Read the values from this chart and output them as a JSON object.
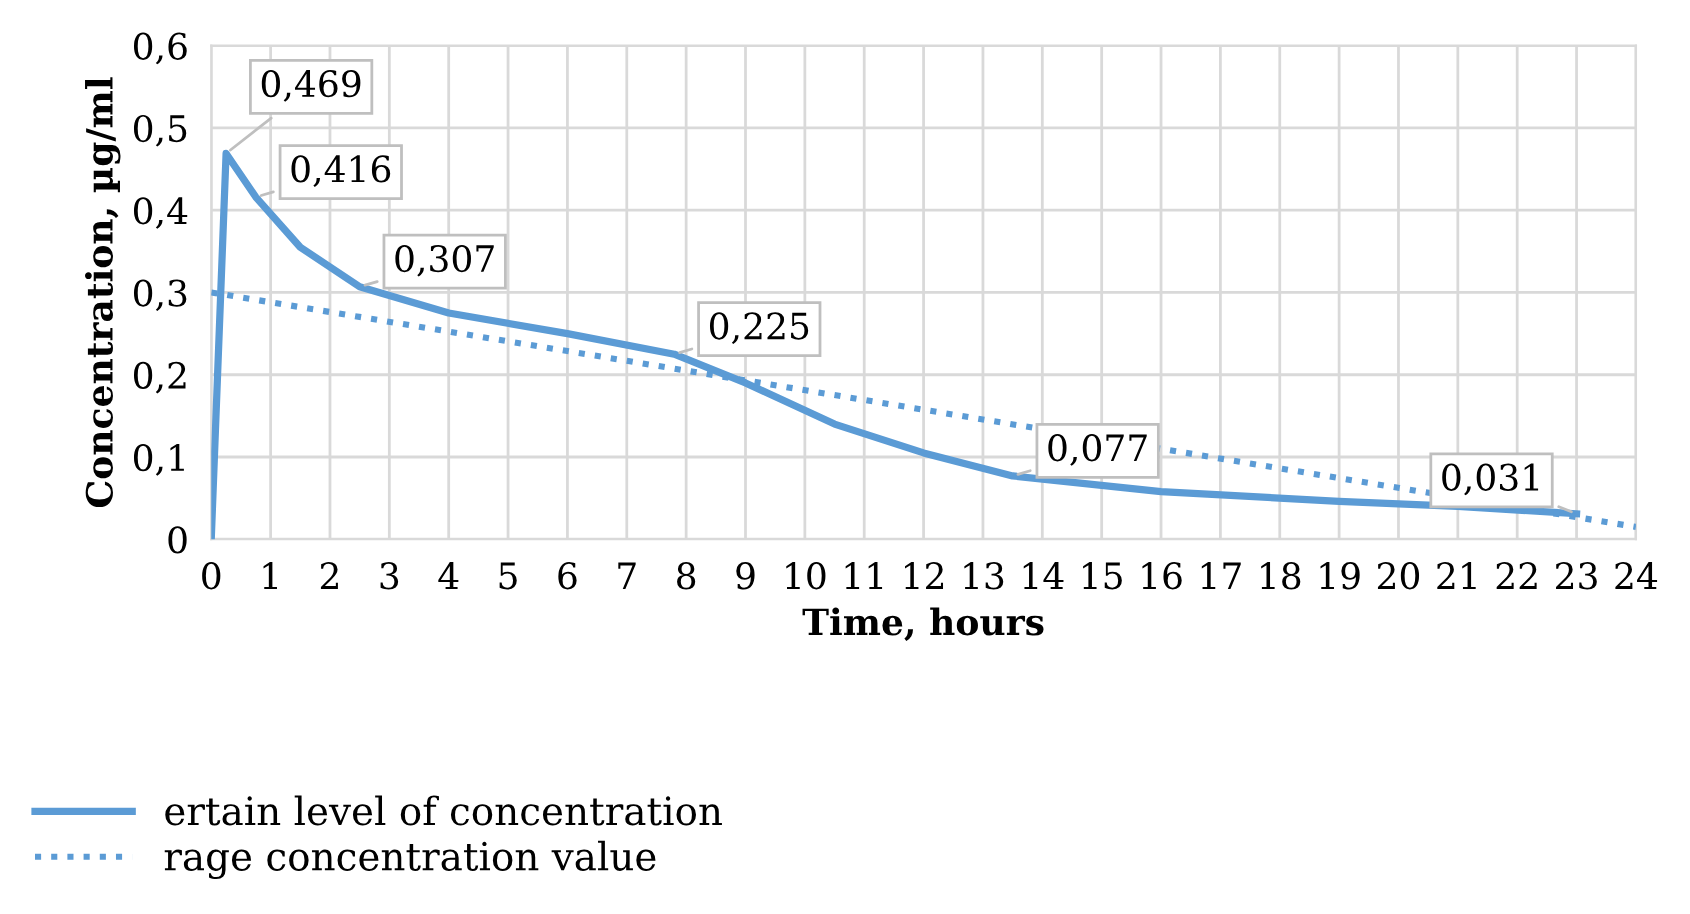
{
  "chart_data": {
    "type": "line",
    "xlabel": "Time, hours",
    "ylabel": "Concentration, µg/ml",
    "xlim": [
      0,
      24
    ],
    "xticks": [
      0,
      1,
      2,
      3,
      4,
      5,
      6,
      7,
      8,
      9,
      10,
      11,
      12,
      13,
      14,
      15,
      16,
      17,
      18,
      19,
      20,
      21,
      22,
      23,
      24
    ],
    "ylim": [
      0,
      0.6
    ],
    "yticks": [
      {
        "value": 0,
        "label": "0"
      },
      {
        "value": 0.1,
        "label": "0,1"
      },
      {
        "value": 0.2,
        "label": "0,2"
      },
      {
        "value": 0.3,
        "label": "0,3"
      },
      {
        "value": 0.4,
        "label": "0,4"
      },
      {
        "value": 0.5,
        "label": "0,5"
      },
      {
        "value": 0.6,
        "label": "0,6"
      }
    ],
    "grid": true,
    "legend": "bottom left",
    "marker": "none",
    "series": [
      {
        "name": "ertain level of concentration",
        "color": "#5b9bd5",
        "line_style": "solid",
        "x": [
          0,
          0.25,
          0.75,
          1.5,
          2.5,
          4,
          6,
          7.8,
          9,
          10.5,
          12,
          13.5,
          16,
          19,
          21,
          23
        ],
        "values": [
          0,
          0.469,
          0.416,
          0.355,
          0.307,
          0.275,
          0.25,
          0.225,
          0.19,
          0.14,
          0.105,
          0.077,
          0.058,
          0.046,
          0.04,
          0.031
        ],
        "value_labels": [
          null,
          "0,469",
          "0,416",
          null,
          "0,307",
          null,
          null,
          "0,225",
          null,
          null,
          null,
          "0,077",
          null,
          null,
          null,
          "0,031"
        ]
      },
      {
        "name": "rage concentration value",
        "color": "#5b9bd5",
        "line_style": "dotted",
        "x": [
          0,
          24
        ],
        "values": [
          0.3,
          0.015
        ]
      }
    ]
  }
}
